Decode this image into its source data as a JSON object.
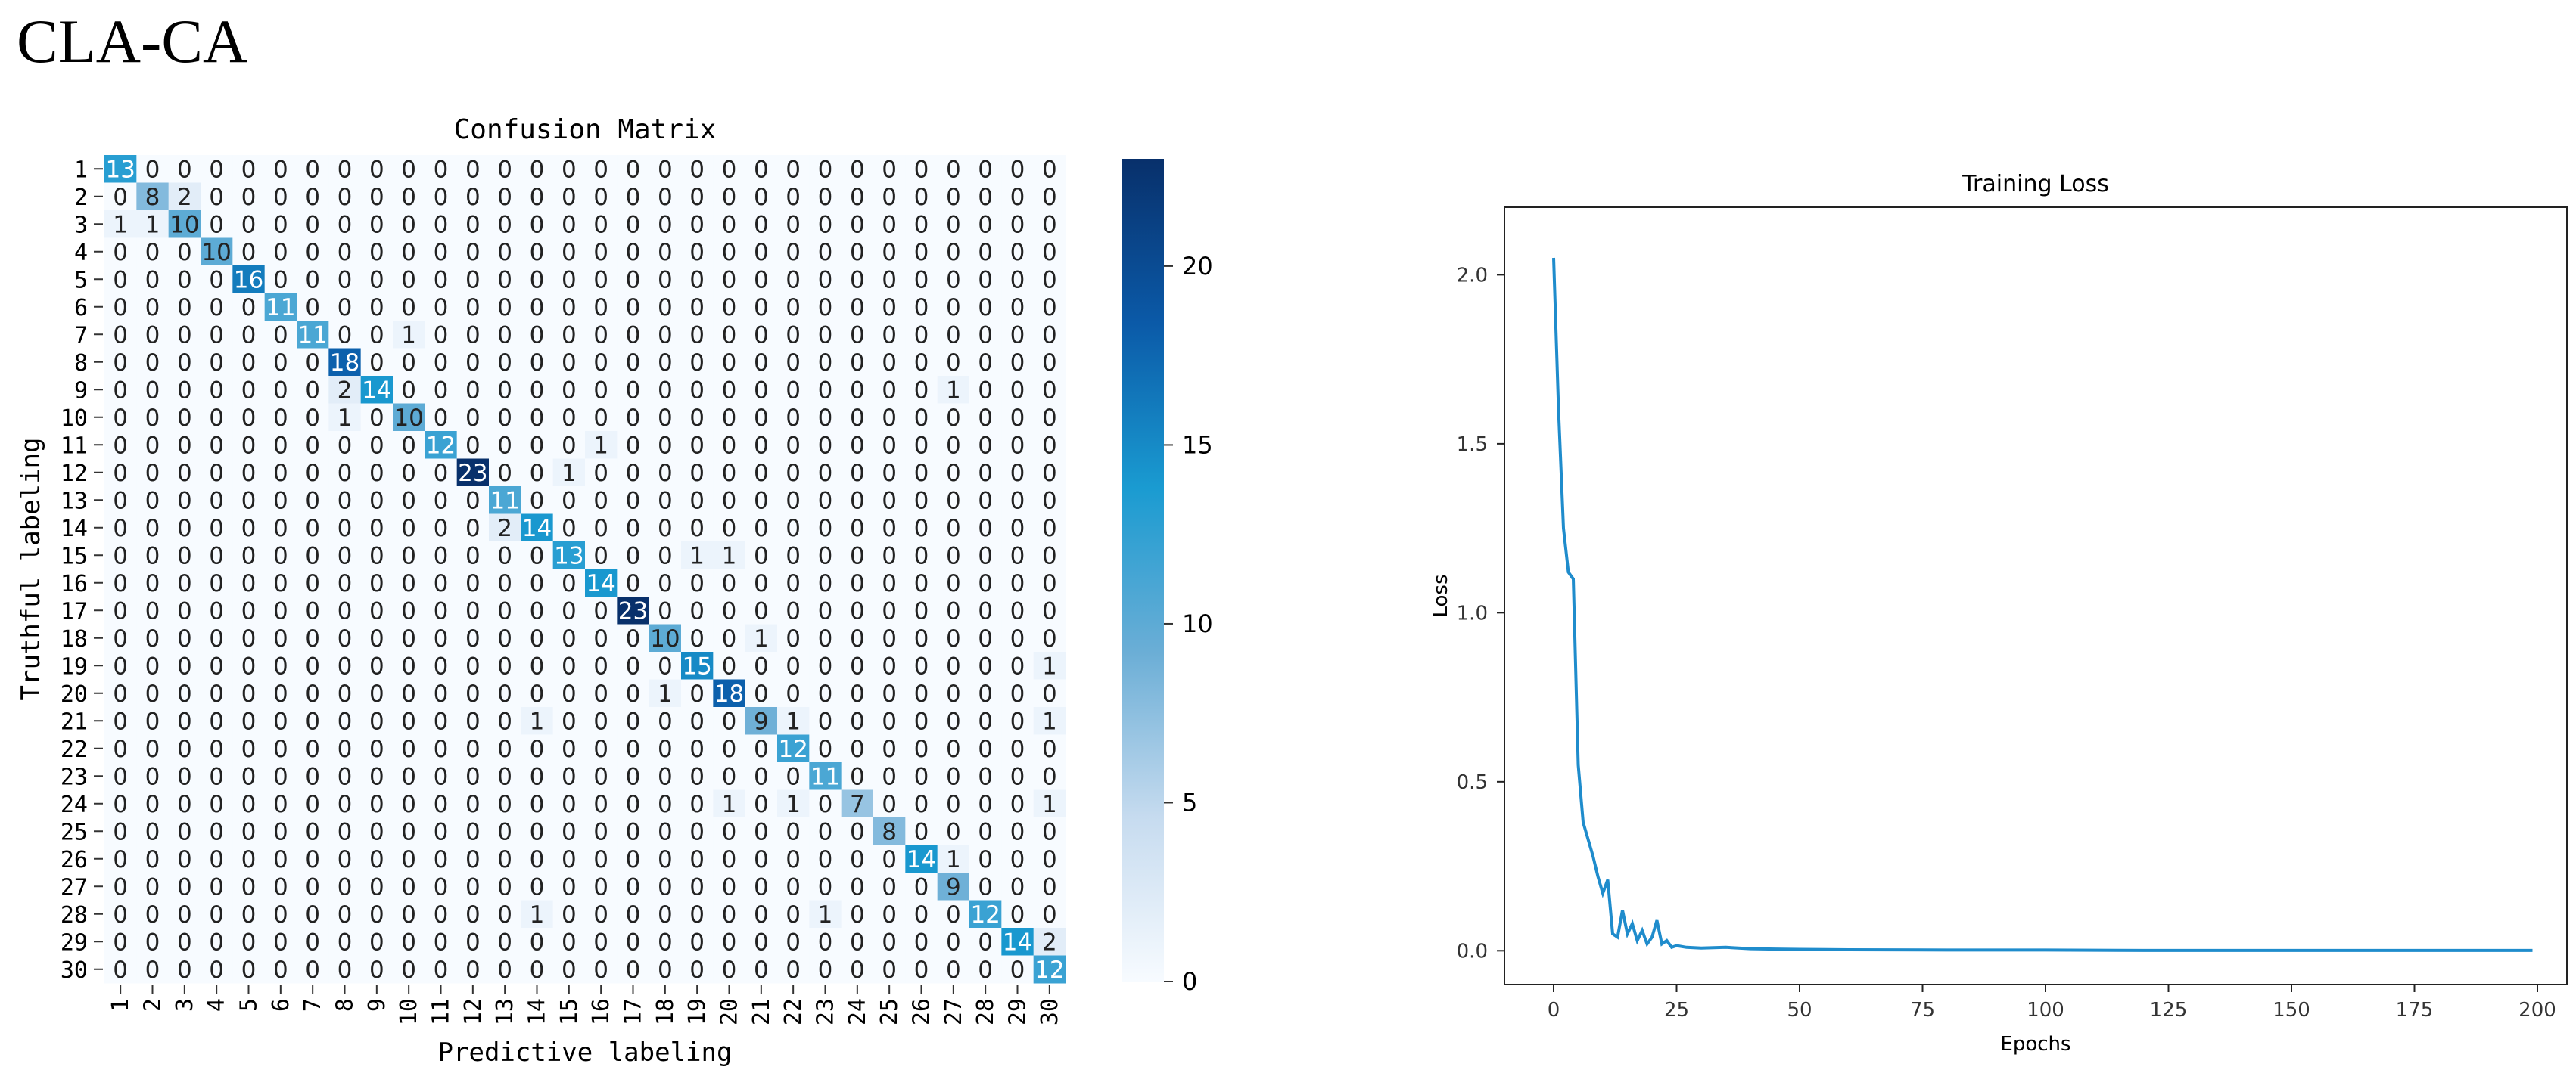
{
  "figure_label": "CLA-CA",
  "chart_data": [
    {
      "type": "heatmap",
      "title": "Confusion Matrix",
      "xlabel": "Predictive labeling",
      "ylabel": "Truthful labeling",
      "categories": [
        "1",
        "2",
        "3",
        "4",
        "5",
        "6",
        "7",
        "8",
        "9",
        "10",
        "11",
        "12",
        "13",
        "14",
        "15",
        "16",
        "17",
        "18",
        "19",
        "20",
        "21",
        "22",
        "23",
        "24",
        "25",
        "26",
        "27",
        "28",
        "29",
        "30"
      ],
      "colorbar": {
        "min": 0,
        "max": 23,
        "ticks": [
          0,
          5,
          10,
          15,
          20
        ]
      },
      "colormap": [
        "#f7fbff",
        "#c6dbef",
        "#6baed6",
        "#1a9bd1",
        "#0b5aa8",
        "#08306b"
      ],
      "matrix": [
        [
          13,
          0,
          0,
          0,
          0,
          0,
          0,
          0,
          0,
          0,
          0,
          0,
          0,
          0,
          0,
          0,
          0,
          0,
          0,
          0,
          0,
          0,
          0,
          0,
          0,
          0,
          0,
          0,
          0,
          0
        ],
        [
          0,
          8,
          2,
          0,
          0,
          0,
          0,
          0,
          0,
          0,
          0,
          0,
          0,
          0,
          0,
          0,
          0,
          0,
          0,
          0,
          0,
          0,
          0,
          0,
          0,
          0,
          0,
          0,
          0,
          0
        ],
        [
          1,
          1,
          10,
          0,
          0,
          0,
          0,
          0,
          0,
          0,
          0,
          0,
          0,
          0,
          0,
          0,
          0,
          0,
          0,
          0,
          0,
          0,
          0,
          0,
          0,
          0,
          0,
          0,
          0,
          0
        ],
        [
          0,
          0,
          0,
          10,
          0,
          0,
          0,
          0,
          0,
          0,
          0,
          0,
          0,
          0,
          0,
          0,
          0,
          0,
          0,
          0,
          0,
          0,
          0,
          0,
          0,
          0,
          0,
          0,
          0,
          0
        ],
        [
          0,
          0,
          0,
          0,
          16,
          0,
          0,
          0,
          0,
          0,
          0,
          0,
          0,
          0,
          0,
          0,
          0,
          0,
          0,
          0,
          0,
          0,
          0,
          0,
          0,
          0,
          0,
          0,
          0,
          0
        ],
        [
          0,
          0,
          0,
          0,
          0,
          11,
          0,
          0,
          0,
          0,
          0,
          0,
          0,
          0,
          0,
          0,
          0,
          0,
          0,
          0,
          0,
          0,
          0,
          0,
          0,
          0,
          0,
          0,
          0,
          0
        ],
        [
          0,
          0,
          0,
          0,
          0,
          0,
          11,
          0,
          0,
          1,
          0,
          0,
          0,
          0,
          0,
          0,
          0,
          0,
          0,
          0,
          0,
          0,
          0,
          0,
          0,
          0,
          0,
          0,
          0,
          0
        ],
        [
          0,
          0,
          0,
          0,
          0,
          0,
          0,
          18,
          0,
          0,
          0,
          0,
          0,
          0,
          0,
          0,
          0,
          0,
          0,
          0,
          0,
          0,
          0,
          0,
          0,
          0,
          0,
          0,
          0,
          0
        ],
        [
          0,
          0,
          0,
          0,
          0,
          0,
          0,
          2,
          14,
          0,
          0,
          0,
          0,
          0,
          0,
          0,
          0,
          0,
          0,
          0,
          0,
          0,
          0,
          0,
          0,
          0,
          1,
          0,
          0,
          0
        ],
        [
          0,
          0,
          0,
          0,
          0,
          0,
          0,
          1,
          0,
          10,
          0,
          0,
          0,
          0,
          0,
          0,
          0,
          0,
          0,
          0,
          0,
          0,
          0,
          0,
          0,
          0,
          0,
          0,
          0,
          0
        ],
        [
          0,
          0,
          0,
          0,
          0,
          0,
          0,
          0,
          0,
          0,
          12,
          0,
          0,
          0,
          0,
          1,
          0,
          0,
          0,
          0,
          0,
          0,
          0,
          0,
          0,
          0,
          0,
          0,
          0,
          0
        ],
        [
          0,
          0,
          0,
          0,
          0,
          0,
          0,
          0,
          0,
          0,
          0,
          23,
          0,
          0,
          1,
          0,
          0,
          0,
          0,
          0,
          0,
          0,
          0,
          0,
          0,
          0,
          0,
          0,
          0,
          0
        ],
        [
          0,
          0,
          0,
          0,
          0,
          0,
          0,
          0,
          0,
          0,
          0,
          0,
          11,
          0,
          0,
          0,
          0,
          0,
          0,
          0,
          0,
          0,
          0,
          0,
          0,
          0,
          0,
          0,
          0,
          0
        ],
        [
          0,
          0,
          0,
          0,
          0,
          0,
          0,
          0,
          0,
          0,
          0,
          0,
          2,
          14,
          0,
          0,
          0,
          0,
          0,
          0,
          0,
          0,
          0,
          0,
          0,
          0,
          0,
          0,
          0,
          0
        ],
        [
          0,
          0,
          0,
          0,
          0,
          0,
          0,
          0,
          0,
          0,
          0,
          0,
          0,
          0,
          13,
          0,
          0,
          0,
          1,
          1,
          0,
          0,
          0,
          0,
          0,
          0,
          0,
          0,
          0,
          0
        ],
        [
          0,
          0,
          0,
          0,
          0,
          0,
          0,
          0,
          0,
          0,
          0,
          0,
          0,
          0,
          0,
          14,
          0,
          0,
          0,
          0,
          0,
          0,
          0,
          0,
          0,
          0,
          0,
          0,
          0,
          0
        ],
        [
          0,
          0,
          0,
          0,
          0,
          0,
          0,
          0,
          0,
          0,
          0,
          0,
          0,
          0,
          0,
          0,
          23,
          0,
          0,
          0,
          0,
          0,
          0,
          0,
          0,
          0,
          0,
          0,
          0,
          0
        ],
        [
          0,
          0,
          0,
          0,
          0,
          0,
          0,
          0,
          0,
          0,
          0,
          0,
          0,
          0,
          0,
          0,
          0,
          10,
          0,
          0,
          1,
          0,
          0,
          0,
          0,
          0,
          0,
          0,
          0,
          0
        ],
        [
          0,
          0,
          0,
          0,
          0,
          0,
          0,
          0,
          0,
          0,
          0,
          0,
          0,
          0,
          0,
          0,
          0,
          0,
          15,
          0,
          0,
          0,
          0,
          0,
          0,
          0,
          0,
          0,
          0,
          1
        ],
        [
          0,
          0,
          0,
          0,
          0,
          0,
          0,
          0,
          0,
          0,
          0,
          0,
          0,
          0,
          0,
          0,
          0,
          1,
          0,
          18,
          0,
          0,
          0,
          0,
          0,
          0,
          0,
          0,
          0,
          0
        ],
        [
          0,
          0,
          0,
          0,
          0,
          0,
          0,
          0,
          0,
          0,
          0,
          0,
          0,
          1,
          0,
          0,
          0,
          0,
          0,
          0,
          9,
          1,
          0,
          0,
          0,
          0,
          0,
          0,
          0,
          1
        ],
        [
          0,
          0,
          0,
          0,
          0,
          0,
          0,
          0,
          0,
          0,
          0,
          0,
          0,
          0,
          0,
          0,
          0,
          0,
          0,
          0,
          0,
          12,
          0,
          0,
          0,
          0,
          0,
          0,
          0,
          0
        ],
        [
          0,
          0,
          0,
          0,
          0,
          0,
          0,
          0,
          0,
          0,
          0,
          0,
          0,
          0,
          0,
          0,
          0,
          0,
          0,
          0,
          0,
          0,
          11,
          0,
          0,
          0,
          0,
          0,
          0,
          0
        ],
        [
          0,
          0,
          0,
          0,
          0,
          0,
          0,
          0,
          0,
          0,
          0,
          0,
          0,
          0,
          0,
          0,
          0,
          0,
          0,
          1,
          0,
          1,
          0,
          7,
          0,
          0,
          0,
          0,
          0,
          1
        ],
        [
          0,
          0,
          0,
          0,
          0,
          0,
          0,
          0,
          0,
          0,
          0,
          0,
          0,
          0,
          0,
          0,
          0,
          0,
          0,
          0,
          0,
          0,
          0,
          0,
          8,
          0,
          0,
          0,
          0,
          0
        ],
        [
          0,
          0,
          0,
          0,
          0,
          0,
          0,
          0,
          0,
          0,
          0,
          0,
          0,
          0,
          0,
          0,
          0,
          0,
          0,
          0,
          0,
          0,
          0,
          0,
          0,
          14,
          1,
          0,
          0,
          0
        ],
        [
          0,
          0,
          0,
          0,
          0,
          0,
          0,
          0,
          0,
          0,
          0,
          0,
          0,
          0,
          0,
          0,
          0,
          0,
          0,
          0,
          0,
          0,
          0,
          0,
          0,
          0,
          9,
          0,
          0,
          0
        ],
        [
          0,
          0,
          0,
          0,
          0,
          0,
          0,
          0,
          0,
          0,
          0,
          0,
          0,
          1,
          0,
          0,
          0,
          0,
          0,
          0,
          0,
          0,
          1,
          0,
          0,
          0,
          0,
          12,
          0,
          0
        ],
        [
          0,
          0,
          0,
          0,
          0,
          0,
          0,
          0,
          0,
          0,
          0,
          0,
          0,
          0,
          0,
          0,
          0,
          0,
          0,
          0,
          0,
          0,
          0,
          0,
          0,
          0,
          0,
          0,
          14,
          2
        ],
        [
          0,
          0,
          0,
          0,
          0,
          0,
          0,
          0,
          0,
          0,
          0,
          0,
          0,
          0,
          0,
          0,
          0,
          0,
          0,
          0,
          0,
          0,
          0,
          0,
          0,
          0,
          0,
          0,
          0,
          12
        ]
      ]
    },
    {
      "type": "line",
      "title": "Training Loss",
      "xlabel": "Epochs",
      "ylabel": "Loss",
      "xlim": [
        -10,
        206
      ],
      "ylim": [
        -0.1,
        2.2
      ],
      "xticks": [
        0,
        25,
        50,
        75,
        100,
        125,
        150,
        175,
        200
      ],
      "yticks": [
        0.0,
        0.5,
        1.0,
        1.5,
        2.0
      ],
      "color": "#1f8ccc",
      "x": [
        0,
        1,
        2,
        3,
        4,
        5,
        6,
        7,
        8,
        9,
        10,
        11,
        12,
        13,
        14,
        15,
        16,
        17,
        18,
        19,
        20,
        21,
        22,
        23,
        24,
        25,
        27,
        30,
        35,
        40,
        45,
        50,
        60,
        80,
        100,
        120,
        140,
        160,
        180,
        199
      ],
      "y": [
        2.05,
        1.6,
        1.25,
        1.12,
        1.1,
        0.55,
        0.38,
        0.33,
        0.28,
        0.22,
        0.17,
        0.21,
        0.05,
        0.04,
        0.12,
        0.05,
        0.08,
        0.03,
        0.06,
        0.02,
        0.04,
        0.09,
        0.02,
        0.03,
        0.01,
        0.015,
        0.01,
        0.008,
        0.01,
        0.006,
        0.005,
        0.004,
        0.003,
        0.002,
        0.002,
        0.001,
        0.001,
        0.001,
        0.001,
        0.001
      ]
    }
  ]
}
